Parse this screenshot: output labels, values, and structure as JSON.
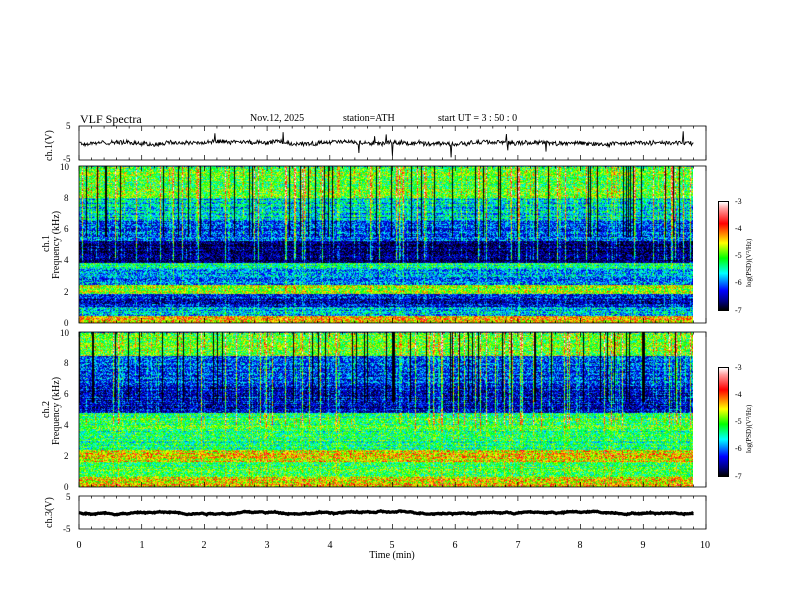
{
  "header": {
    "title": "VLF  Spectra",
    "date": "Nov.12, 2025",
    "station": "station=ATH",
    "start": "start  UT  =    3  : 50 : 0"
  },
  "chart_data": {
    "type": "heatmap",
    "title": "VLF  Spectra",
    "xlabel": "Time  (min)",
    "xlim": [
      0,
      10
    ],
    "x_ticks": [
      "0",
      "1",
      "2",
      "3",
      "4",
      "5",
      "6",
      "7",
      "8",
      "9",
      "10"
    ],
    "data_end_min": 9.8,
    "panels": [
      {
        "id": "ch1-voltage",
        "type": "line",
        "ylabel": "ch.1(V)",
        "ylim": [
          -5,
          5
        ],
        "y_ticks": [
          "5",
          "-5"
        ],
        "mean_value": 0,
        "noise_amplitude": 1.2
      },
      {
        "id": "ch1-spectrogram",
        "type": "heatmap",
        "ylabel_line1": "ch.1",
        "ylabel_line2": "Frequency  (kHz)",
        "ylim": [
          0,
          10
        ],
        "y_ticks": [
          "0",
          "2",
          "4",
          "6",
          "8",
          "10"
        ],
        "colorbar": {
          "label": "log(PSD)(V²/Hz)",
          "range": [
            -7,
            -3
          ],
          "ticks": [
            "-3",
            "-4",
            "-5",
            "-6",
            "-7"
          ]
        },
        "bands_khz": [
          {
            "from": 0.0,
            "to": 0.4,
            "level": -4.2
          },
          {
            "from": 0.4,
            "to": 1.0,
            "level": -5.6
          },
          {
            "from": 1.0,
            "to": 1.8,
            "level": -6.3
          },
          {
            "from": 1.8,
            "to": 2.4,
            "level": -4.6
          },
          {
            "from": 2.4,
            "to": 3.4,
            "level": -5.8
          },
          {
            "from": 3.4,
            "to": 3.8,
            "level": -5.2
          },
          {
            "from": 3.8,
            "to": 5.2,
            "level": -6.7
          },
          {
            "from": 5.2,
            "to": 6.5,
            "level": -6.0
          },
          {
            "from": 6.5,
            "to": 8.0,
            "level": -5.5
          },
          {
            "from": 8.0,
            "to": 10.0,
            "level": -4.9
          }
        ]
      },
      {
        "id": "ch2-spectrogram",
        "type": "heatmap",
        "ylabel_line1": "ch.2",
        "ylabel_line2": "Frequency  (kHz)",
        "ylim": [
          0,
          10
        ],
        "y_ticks": [
          "0",
          "2",
          "4",
          "6",
          "8",
          "10"
        ],
        "colorbar": {
          "label": "log(PSD)(V²/Hz)",
          "range": [
            -7,
            -3
          ],
          "ticks": [
            "-3",
            "-4",
            "-5",
            "-6",
            "-7"
          ]
        },
        "bands_khz": [
          {
            "from": 0.0,
            "to": 0.6,
            "level": -4.3
          },
          {
            "from": 0.6,
            "to": 1.6,
            "level": -5.0
          },
          {
            "from": 1.6,
            "to": 2.4,
            "level": -4.4
          },
          {
            "from": 2.4,
            "to": 3.6,
            "level": -5.1
          },
          {
            "from": 3.6,
            "to": 4.8,
            "level": -5.0
          },
          {
            "from": 4.8,
            "to": 6.5,
            "level": -6.3
          },
          {
            "from": 6.5,
            "to": 8.5,
            "level": -6.0
          },
          {
            "from": 8.5,
            "to": 10.0,
            "level": -4.8
          }
        ]
      },
      {
        "id": "ch3-voltage",
        "type": "line",
        "ylabel": "ch.3(V)",
        "ylim": [
          -5,
          5
        ],
        "y_ticks": [
          "5",
          "-5"
        ],
        "mean_value": 0,
        "noise_amplitude": 0.15
      }
    ]
  }
}
